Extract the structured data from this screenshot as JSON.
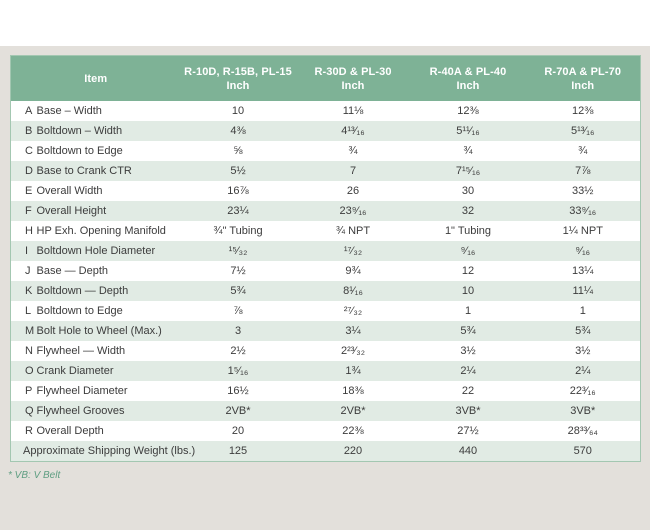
{
  "footnote": "* VB: V Belt",
  "colors": {
    "header_green": "#7eb296",
    "row_alt_green": "#e1ebe4",
    "panel_gray": "#e3e0db",
    "table_border_green": "#a3c7b1",
    "footnote_green": "#5f9e82",
    "text": "#3c3c3c"
  },
  "table": {
    "item_header": "Item",
    "unit_label": "Inch",
    "columns": [
      {
        "line1": "R-10D, R-15B, PL-15",
        "line2": "Inch"
      },
      {
        "line1": "R-30D & PL-30",
        "line2": "Inch"
      },
      {
        "line1": "R-40A & PL-40",
        "line2": "Inch"
      },
      {
        "line1": "R-70A & PL-70",
        "line2": "Inch"
      }
    ],
    "rows": [
      {
        "letter": "A",
        "label": "Base – Width",
        "values": [
          "10",
          "11⅛",
          "12⅜",
          "12⅜"
        ]
      },
      {
        "letter": "B",
        "label": "Boltdown – Width",
        "values": [
          "4⅜",
          "4¹³⁄₁₆",
          "5¹¹⁄₁₆",
          "5¹³⁄₁₆"
        ]
      },
      {
        "letter": "C",
        "label": "Boltdown to Edge",
        "values": [
          "⅝",
          "¾",
          "¾",
          "¾"
        ]
      },
      {
        "letter": "D",
        "label": "Base to Crank CTR",
        "values": [
          "5½",
          "7",
          "7¹⁵⁄₁₆",
          "7⅞"
        ]
      },
      {
        "letter": "E",
        "label": "Overall Width",
        "values": [
          "16⅞",
          "26",
          "30",
          "33½"
        ]
      },
      {
        "letter": "F",
        "label": "Overall Height",
        "values": [
          "23¼",
          "23⁹⁄₁₆",
          "32",
          "33⁹⁄₁₆"
        ]
      },
      {
        "letter": "H",
        "label": "HP Exh. Opening Manifold",
        "values": [
          "¾\" Tubing",
          "¾ NPT",
          "1\" Tubing",
          "1¼ NPT"
        ]
      },
      {
        "letter": "I",
        "label": "Boltdown Hole Diameter",
        "values": [
          "¹⁵⁄₃₂",
          "¹⁷⁄₃₂",
          "⁹⁄₁₆",
          "⁹⁄₁₆"
        ]
      },
      {
        "letter": "J",
        "label": "Base — Depth",
        "values": [
          "7½",
          "9¾",
          "12",
          "13¼"
        ]
      },
      {
        "letter": "K",
        "label": "Boltdown — Depth",
        "values": [
          "5¾",
          "8¹⁄₁₆",
          "10",
          "11¼"
        ]
      },
      {
        "letter": "L",
        "label": "Boltdown to Edge",
        "values": [
          "⅞",
          "²⁷⁄₃₂",
          "1",
          "1"
        ]
      },
      {
        "letter": "M",
        "label": "Bolt Hole to Wheel (Max.)",
        "values": [
          "3",
          "3¼",
          "5¾",
          "5¾"
        ]
      },
      {
        "letter": "N",
        "label": "Flywheel — Width",
        "values": [
          "2½",
          "2²³⁄₃₂",
          "3½",
          "3½"
        ]
      },
      {
        "letter": "O",
        "label": "Crank Diameter",
        "values": [
          "1⁵⁄₁₆",
          "1¾",
          "2¼",
          "2¼"
        ]
      },
      {
        "letter": "P",
        "label": "Flywheel Diameter",
        "values": [
          "16½",
          "18⅜",
          "22",
          "22³⁄₁₆"
        ]
      },
      {
        "letter": "Q",
        "label": "Flywheel Grooves",
        "values": [
          "2VB*",
          "2VB*",
          "3VB*",
          "3VB*"
        ]
      },
      {
        "letter": "R",
        "label": "Overall Depth",
        "values": [
          "20",
          "22⅜",
          "27½",
          "28³³⁄₆₄"
        ]
      }
    ],
    "summary_row": {
      "label": "Approximate Shipping Weight (lbs.)",
      "values": [
        "125",
        "220",
        "440",
        "570"
      ]
    }
  }
}
